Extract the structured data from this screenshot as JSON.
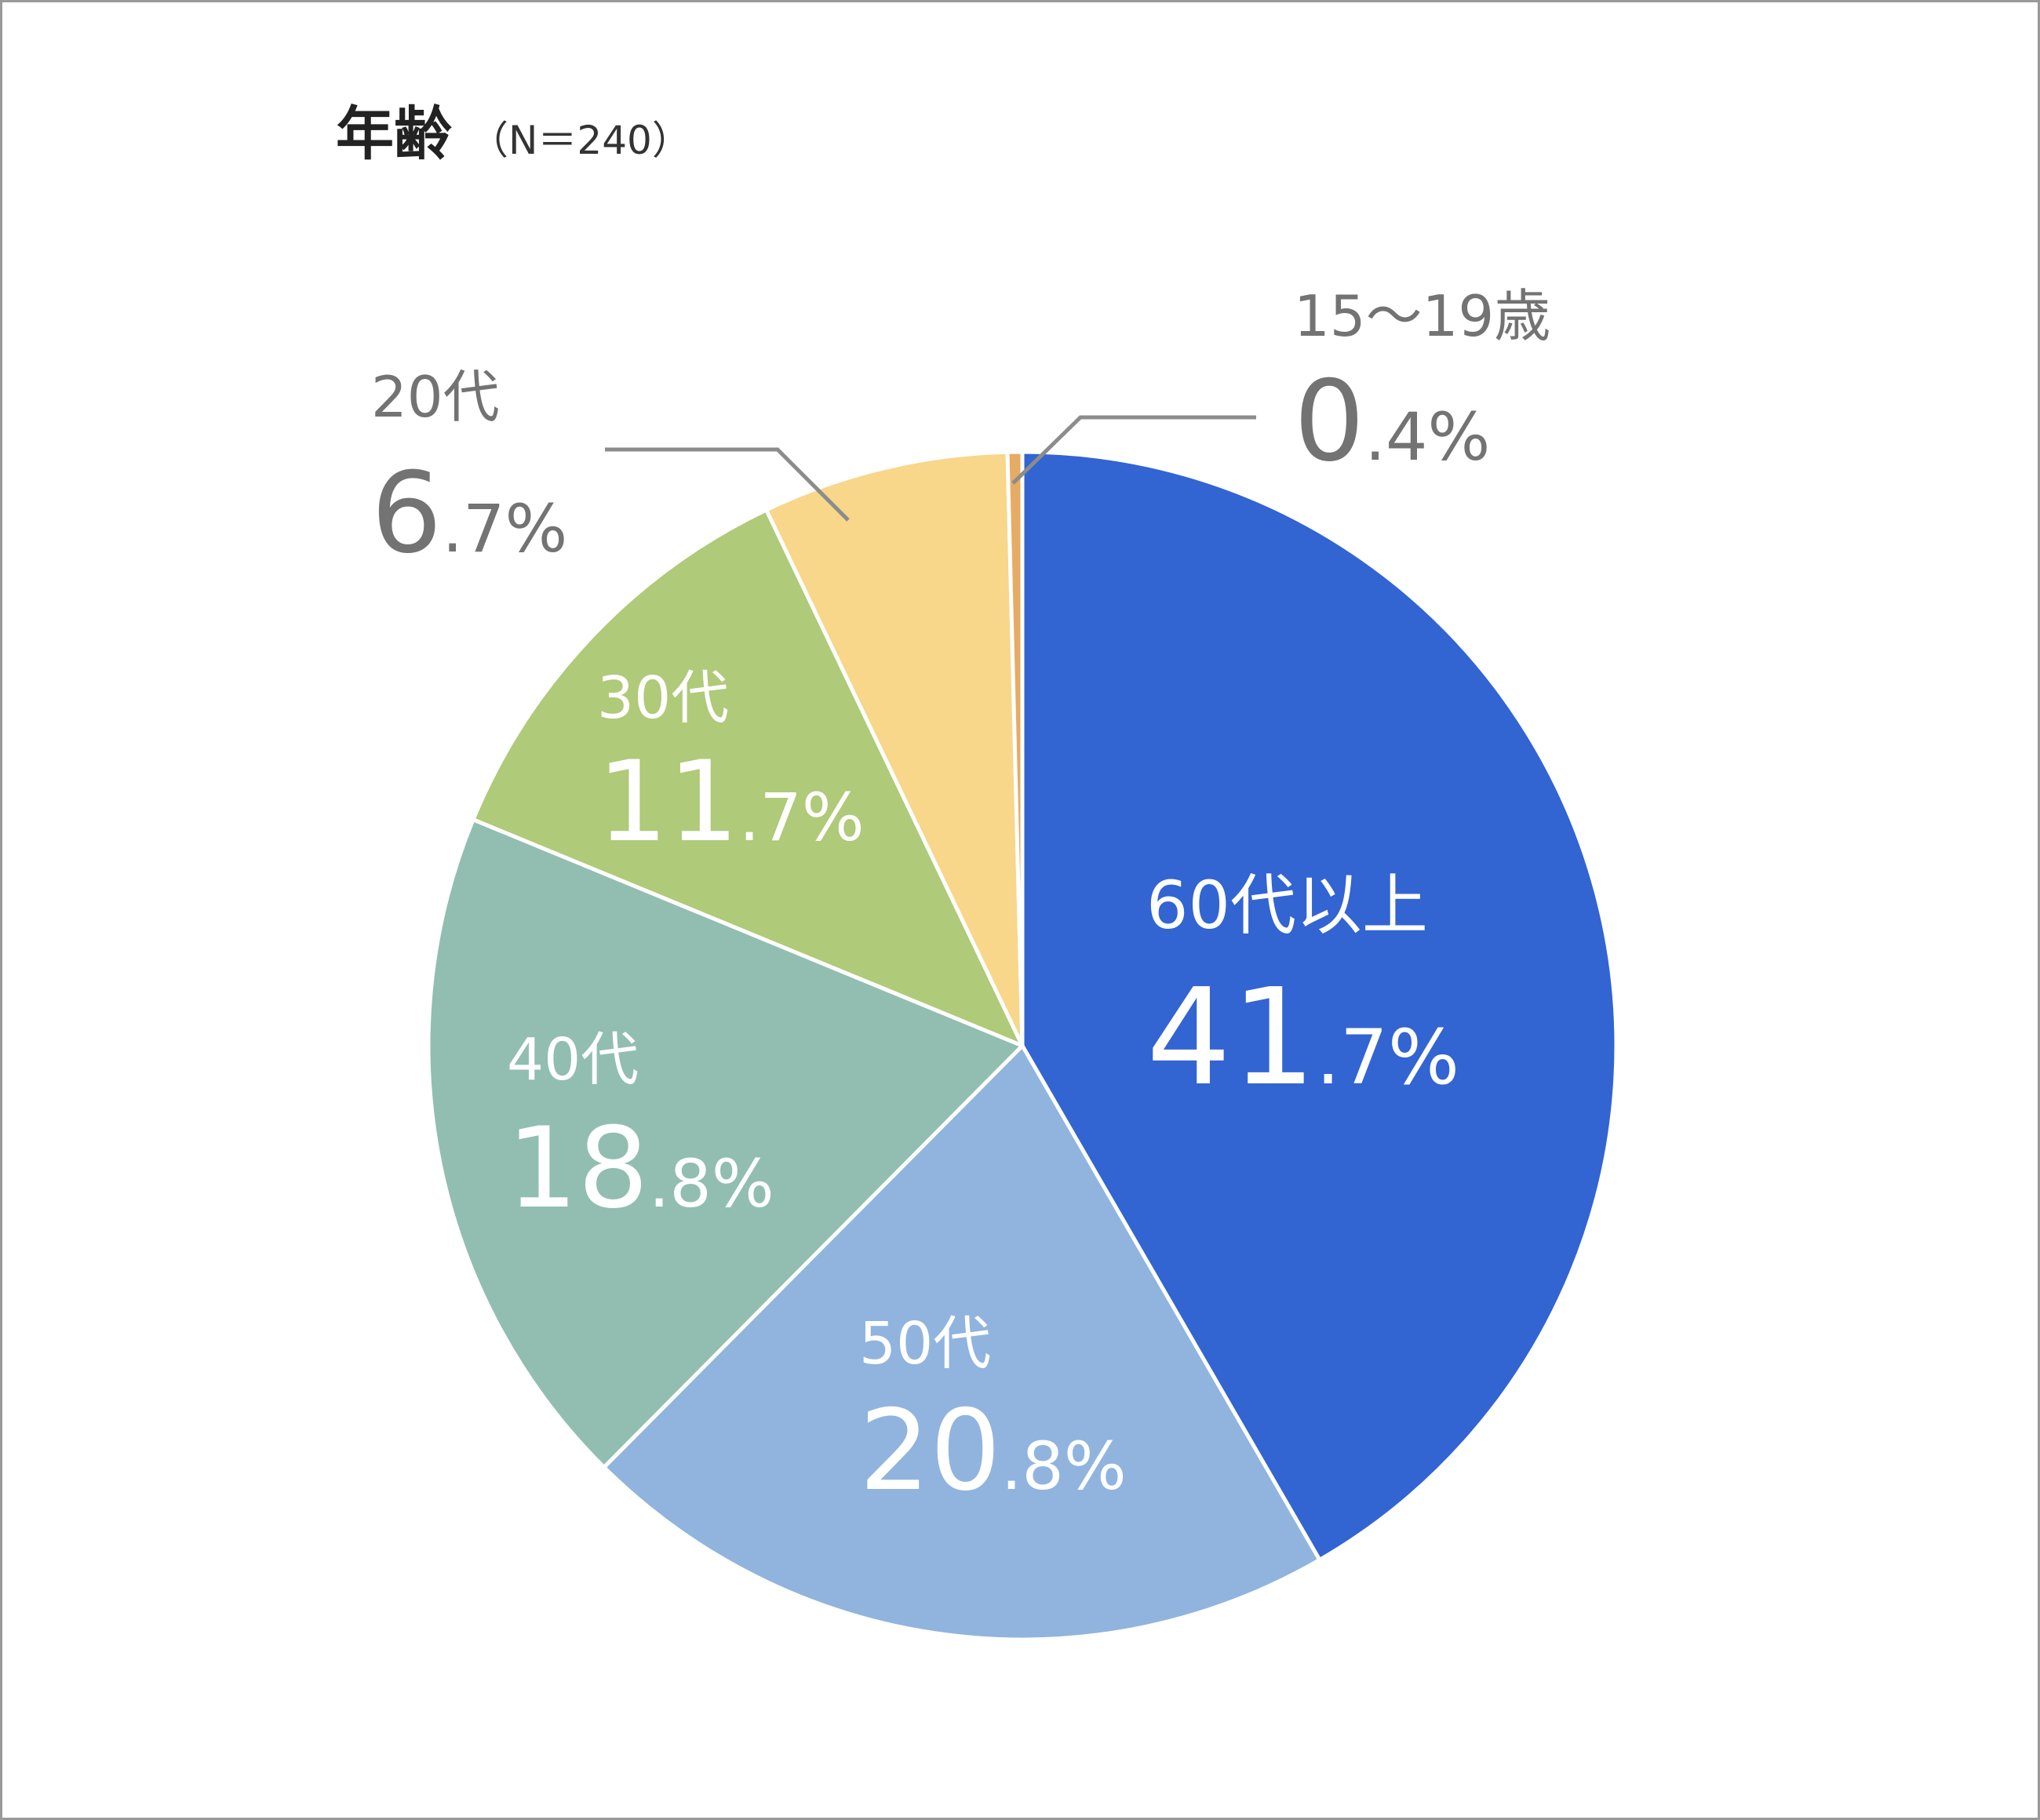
{
  "title": "年齢",
  "subtitle": "（N＝240）",
  "chart_data": {
    "type": "pie",
    "title": "年齢",
    "subtitle": "（N＝240）",
    "start": "12 o'clock, clockwise",
    "slices": [
      {
        "label": "60代以上",
        "value": 41.7,
        "int": "41",
        "dec": ".7",
        "unit": "%",
        "color": "#3264d2",
        "labelColor": "#ffffff",
        "labelPlacement": "inside"
      },
      {
        "label": "50代",
        "value": 20.8,
        "int": "20",
        "dec": ".8",
        "unit": "%",
        "color": "#90b4de",
        "labelColor": "#ffffff",
        "labelPlacement": "inside"
      },
      {
        "label": "40代",
        "value": 18.8,
        "int": "18",
        "dec": ".8",
        "unit": "%",
        "color": "#91beb0",
        "labelColor": "#ffffff",
        "labelPlacement": "inside"
      },
      {
        "label": "30代",
        "value": 11.7,
        "int": "11",
        "dec": ".7",
        "unit": "%",
        "color": "#afca78",
        "labelColor": "#ffffff",
        "labelPlacement": "inside"
      },
      {
        "label": "20代",
        "value": 6.7,
        "int": "6",
        "dec": ".7",
        "unit": "%",
        "color": "#f8d68a",
        "labelColor": "#737373",
        "labelPlacement": "outside-left"
      },
      {
        "label": "15～19歳",
        "value": 0.4,
        "int": "0",
        "dec": ".4",
        "unit": "%",
        "color": "#e6ab64",
        "labelColor": "#737373",
        "labelPlacement": "outside-right"
      }
    ]
  }
}
